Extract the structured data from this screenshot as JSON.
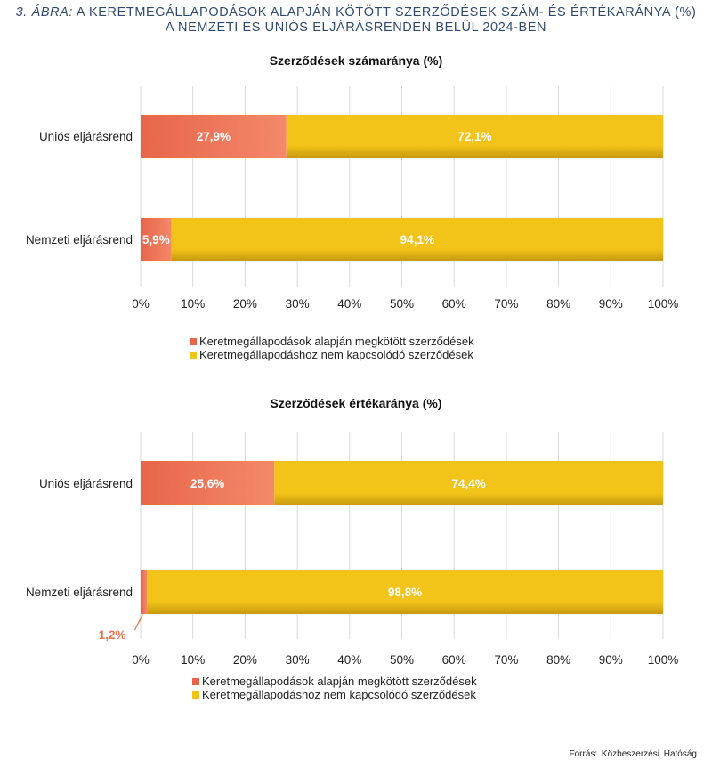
{
  "figure": {
    "label": "3. ÁBRA:",
    "title_line1": "A KERETMEGÁLLAPODÁSOK ALAPJÁN KÖTÖTT SZERZŐDÉSEK SZÁM- ÉS ÉRTÉKARÁNYA (%)",
    "title_line2": "A NEMZETI ÉS UNIÓS ELJÁRÁSRENDEN BELÜL 2024-BEN"
  },
  "source": "Forrás: Közbeszerzési Hatóság",
  "colors": {
    "series1": "#e7664a",
    "series1_light": "#f4886a",
    "series2": "#f2c318",
    "series2_dark": "#c79a10",
    "callout": "#e8734f"
  },
  "chart_data": [
    {
      "type": "bar",
      "orientation": "horizontal",
      "stacked": "percent",
      "title": "Szerződések számaránya (%)",
      "categories": [
        "Uniós eljárásrend",
        "Nemzeti eljárásrend"
      ],
      "series": [
        {
          "name": "Keretmegállapodások alapján megkötött szerződések",
          "values": [
            27.9,
            5.9
          ],
          "labels": [
            "27,9%",
            "5,9%"
          ]
        },
        {
          "name": "Keretmegállapodáshoz nem kapcsolódó szerződések",
          "values": [
            72.1,
            94.1
          ],
          "labels": [
            "72,1%",
            "94,1%"
          ]
        }
      ],
      "xlim": [
        0,
        100
      ],
      "x_ticks": [
        "0%",
        "10%",
        "20%",
        "30%",
        "40%",
        "50%",
        "60%",
        "70%",
        "80%",
        "90%",
        "100%"
      ],
      "grid": true,
      "legend_position": "bottom-left"
    },
    {
      "type": "bar",
      "orientation": "horizontal",
      "stacked": "percent",
      "title": "Szerződések értékaránya (%)",
      "categories": [
        "Uniós eljárásrend",
        "Nemzeti eljárásrend"
      ],
      "series": [
        {
          "name": "Keretmegállapodások alapján megkötött szerződések",
          "values": [
            25.6,
            1.2
          ],
          "labels": [
            "25,6%",
            "1,2%"
          ]
        },
        {
          "name": "Keretmegállapodáshoz nem kapcsolódó szerződések",
          "values": [
            74.4,
            98.8
          ],
          "labels": [
            "74,4%",
            "98,8%"
          ]
        }
      ],
      "xlim": [
        0,
        100
      ],
      "x_ticks": [
        "0%",
        "10%",
        "20%",
        "30%",
        "40%",
        "50%",
        "60%",
        "70%",
        "80%",
        "90%",
        "100%"
      ],
      "grid": true,
      "legend_position": "bottom-left",
      "callout": {
        "category": "Nemzeti eljárásrend",
        "series": 0,
        "label": "1,2%"
      }
    }
  ]
}
